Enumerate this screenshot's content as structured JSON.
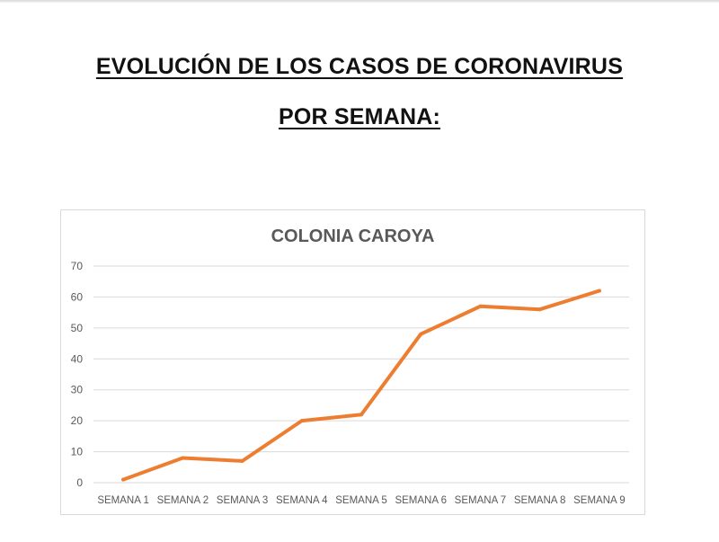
{
  "page": {
    "title_line1": "EVOLUCIÓN DE LOS CASOS DE CORONAVIRUS",
    "title_line2": "POR SEMANA:"
  },
  "chart_data": {
    "type": "line",
    "title": "COLONIA CAROYA",
    "categories": [
      "SEMANA 1",
      "SEMANA 2",
      "SEMANA 3",
      "SEMANA 4",
      "SEMANA 5",
      "SEMANA 6",
      "SEMANA 7",
      "SEMANA 8",
      "SEMANA 9"
    ],
    "series": [
      {
        "values": [
          1,
          8,
          7,
          20,
          22,
          48,
          57,
          56,
          62
        ]
      }
    ],
    "yticks": [
      0,
      10,
      20,
      30,
      40,
      50,
      60,
      70
    ],
    "ylim": [
      0,
      70
    ],
    "grid": true,
    "legend": "none",
    "line_color": "#ed7d31",
    "grid_color": "#d9d9d9",
    "tick_label_color": "#595959"
  }
}
